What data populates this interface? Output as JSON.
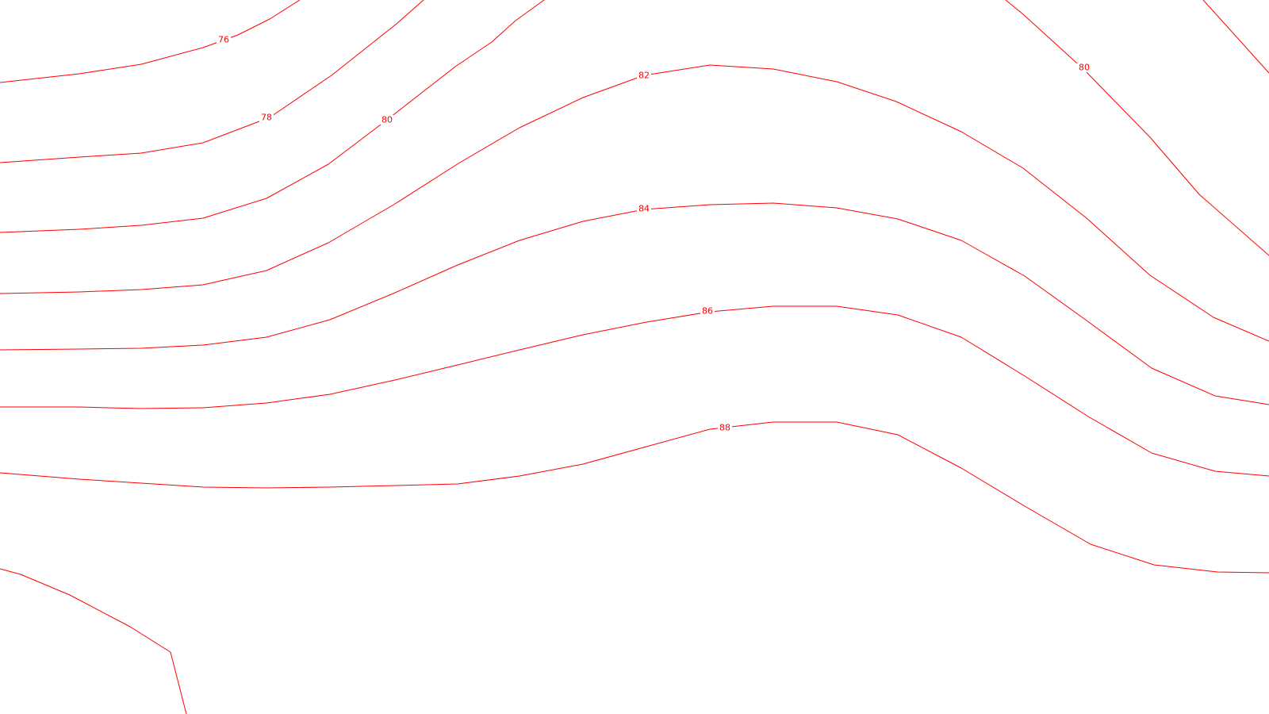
{
  "map": {
    "type": "contour",
    "line_color": "#ff0000",
    "background_color": "#ffffff",
    "contour_labels": [
      "76",
      "78",
      "80",
      "82",
      "84",
      "86",
      "88",
      "80"
    ]
  }
}
